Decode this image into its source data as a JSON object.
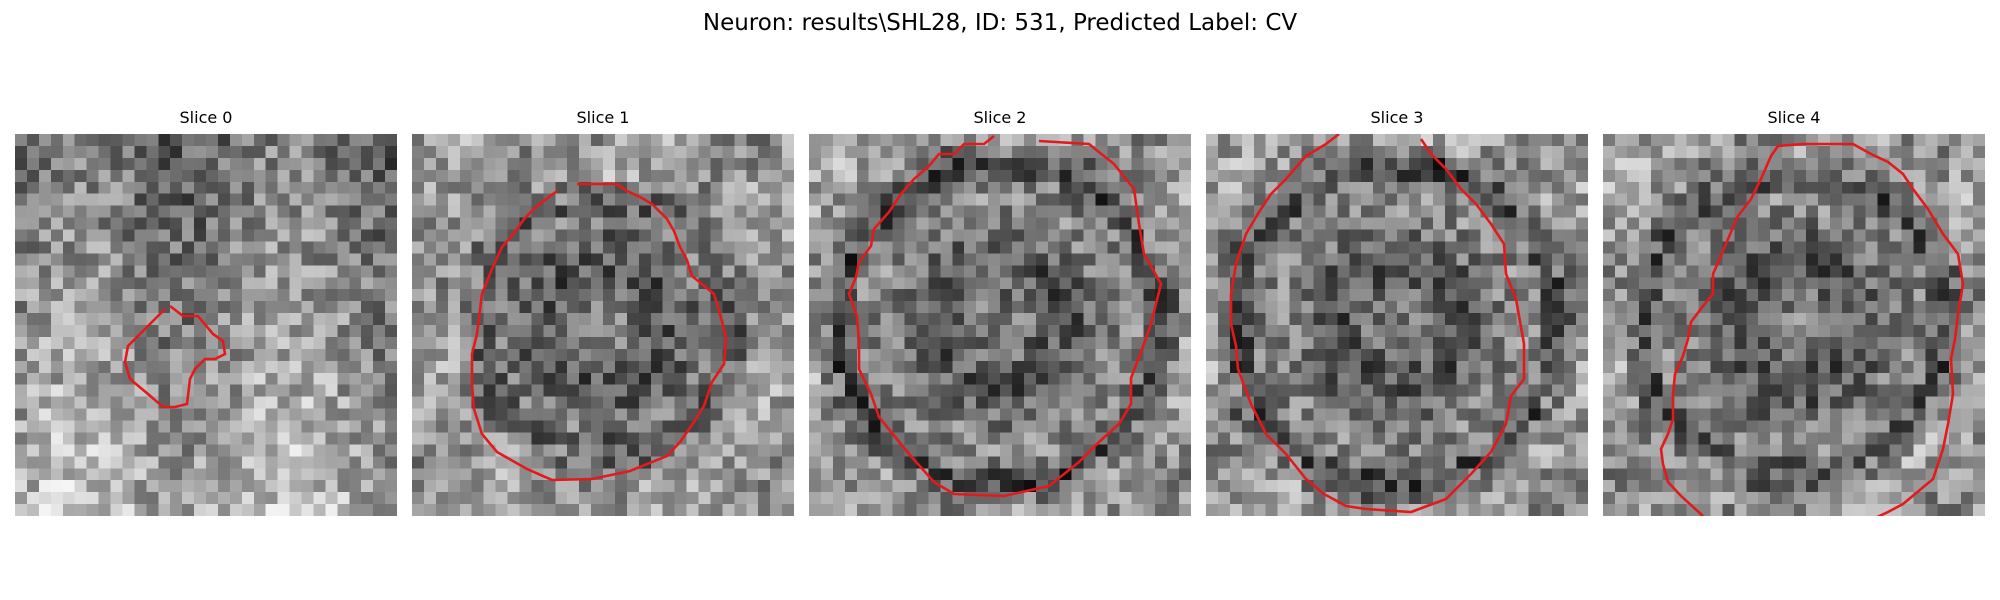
{
  "figure": {
    "title": "Neuron: results\\SHL28, ID: 531, Predicted Label: CV"
  },
  "colors": {
    "contour": "#e31a1c",
    "background": "#ffffff",
    "colormap": "gray"
  },
  "slices": [
    {
      "label": "Slice 0"
    },
    {
      "label": "Slice 1"
    },
    {
      "label": "Slice 2"
    },
    {
      "label": "Slice 3"
    },
    {
      "label": "Slice 4"
    }
  ]
}
